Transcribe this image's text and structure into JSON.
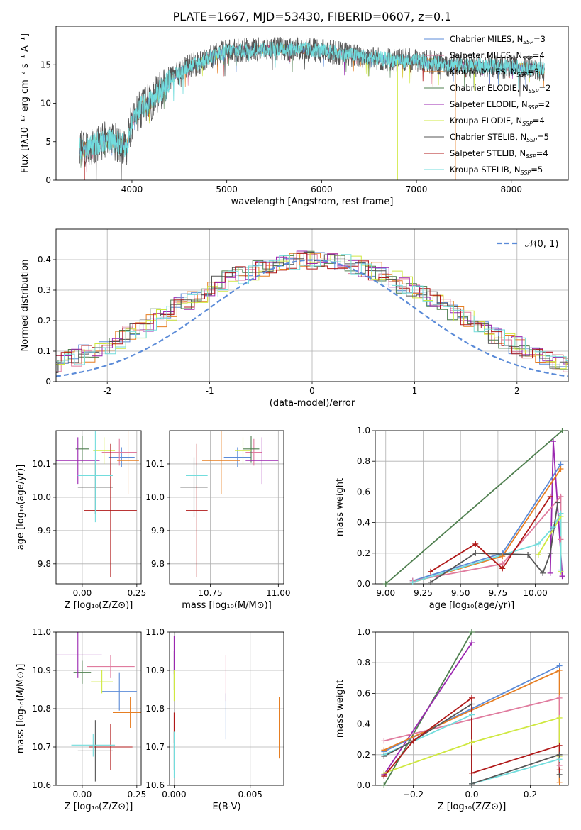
{
  "figure": {
    "title": "PLATE=1667, MJD=53430, FIBERID=0607, z=0.1"
  },
  "colors": {
    "Chabrier MILES": "#5b8bd8",
    "Salpeter MILES": "#e07b9e",
    "Kroupa MILES": "#e67e22",
    "Chabrier ELODIE": "#4f7f4f",
    "Salpeter ELODIE": "#9b27b0",
    "Kroupa ELODIE": "#cfe840",
    "Chabrier STELIB": "#555555",
    "Salpeter STELIB": "#b01818",
    "Kroupa STELIB": "#72dddd",
    "grid": "#b0b0b0",
    "gauss": "#5b8bd8"
  },
  "chart_data": [
    {
      "id": "spectrum",
      "type": "line",
      "xlabel": "wavelength [Angstrom, rest frame]",
      "ylabel": "Flux [fλ10⁻¹⁷ erg cm⁻² s⁻¹ A⁻¹]",
      "xlim": [
        3200,
        8600
      ],
      "ylim": [
        0,
        20
      ],
      "xticks": [
        4000,
        5000,
        6000,
        7000,
        8000
      ],
      "yticks": [
        0,
        5,
        10,
        15
      ],
      "grid": false,
      "legend_position": "top-right",
      "legend": [
        "Chabrier MILES, N_SSP=3",
        "Salpeter MILES, N_SSP=4",
        "Kroupa MILES, N_SSP=3",
        "Chabrier ELODIE, N_SSP=2",
        "Salpeter ELODIE, N_SSP=2",
        "Kroupa ELODIE, N_SSP=4",
        "Chabrier STELIB, N_SSP=5",
        "Salpeter STELIB, N_SSP=4",
        "Kroupa STELIB, N_SSP=5"
      ],
      "continuum": {
        "x": [
          3500,
          3600,
          3700,
          3800,
          3900,
          3950,
          4000,
          4100,
          4200,
          4300,
          4400,
          4500,
          4600,
          4700,
          4800,
          4900,
          5000,
          5200,
          5400,
          5600,
          5800,
          6000,
          6200,
          6400,
          6600,
          6800,
          7000,
          7200,
          7400,
          7600,
          7800,
          8000,
          8200,
          8350
        ],
        "y": [
          4.0,
          4.6,
          5.2,
          5.2,
          4.5,
          4.4,
          7.8,
          9.4,
          10.2,
          11.6,
          13.0,
          14.0,
          14.8,
          15.2,
          15.8,
          16.3,
          16.8,
          16.9,
          17.0,
          17.1,
          17.0,
          16.8,
          16.5,
          16.1,
          15.8,
          15.6,
          15.5,
          15.2,
          15.0,
          14.9,
          14.8,
          14.7,
          14.6,
          14.4
        ]
      },
      "spikes": [
        {
          "x": 6800,
          "series": "Kroupa ELODIE"
        },
        {
          "x": 7410,
          "series": "Kroupa MILES"
        },
        {
          "x": 3500,
          "series": "Salpeter STELIB"
        }
      ]
    },
    {
      "id": "residuals",
      "type": "step",
      "xlabel": "(data-model)/error",
      "ylabel": "Normed distribution",
      "xlim": [
        -2.5,
        2.5
      ],
      "ylim": [
        0,
        0.5
      ],
      "xticks": [
        -2,
        -1,
        0,
        1,
        2
      ],
      "yticks": [
        0.0,
        0.1,
        0.2,
        0.3,
        0.4
      ],
      "grid": true,
      "legend_position": "top-right",
      "legend": [
        "𝒩(0, 1)"
      ],
      "bin_width": 0.1,
      "base_counts": [
        0.02,
        0.024,
        0.029,
        0.035,
        0.041,
        0.049,
        0.058,
        0.068,
        0.08,
        0.092,
        0.106,
        0.121,
        0.137,
        0.154,
        0.172,
        0.19,
        0.209,
        0.228,
        0.247,
        0.266,
        0.285,
        0.302,
        0.319,
        0.335,
        0.349,
        0.362,
        0.373,
        0.382,
        0.39,
        0.395,
        0.398,
        0.399,
        0.398,
        0.395,
        0.39,
        0.382,
        0.373,
        0.362,
        0.349,
        0.335,
        0.319,
        0.302,
        0.285,
        0.266,
        0.247,
        0.228,
        0.209,
        0.19,
        0.172,
        0.154,
        0.137,
        0.121,
        0.106,
        0.092,
        0.08,
        0.068,
        0.058,
        0.049,
        0.041,
        0.035,
        0.029,
        0.024,
        0.02
      ]
    },
    {
      "id": "age-vs-Z",
      "type": "errorbar",
      "xlabel": "Z [log₁₀(Z/Z⊙)]",
      "ylabel": "age  [log₁₀(age/yr)]",
      "xlim": [
        -0.12,
        0.27
      ],
      "ylim": [
        9.74,
        10.2
      ],
      "xticks": [
        0.0,
        0.25
      ],
      "xticklabels": [
        "0.00",
        "0.25"
      ],
      "yticks": [
        9.8,
        9.9,
        10.0,
        10.1
      ],
      "yticklabels": [
        "9.8",
        "9.9",
        "10.0",
        "10.1"
      ],
      "grid": true,
      "points": [
        {
          "s": "Chabrier MILES",
          "x": 0.18,
          "y": 10.12,
          "xerr": 0.06,
          "yerr": 0.03
        },
        {
          "s": "Salpeter MILES",
          "x": 0.17,
          "y": 10.135,
          "xerr": 0.08,
          "yerr": 0.04
        },
        {
          "s": "Kroupa MILES",
          "x": 0.21,
          "y": 10.11,
          "xerr": 0.05,
          "yerr": 0.1
        },
        {
          "s": "Chabrier ELODIE",
          "x": 0.0,
          "y": 10.145,
          "xerr": 0.03,
          "yerr": 0.04
        },
        {
          "s": "Salpeter ELODIE",
          "x": -0.02,
          "y": 10.11,
          "xerr": 0.1,
          "yerr": 0.07
        },
        {
          "s": "Kroupa ELODIE",
          "x": 0.1,
          "y": 10.14,
          "xerr": 0.05,
          "yerr": 0.04
        },
        {
          "s": "Chabrier STELIB",
          "x": 0.06,
          "y": 10.03,
          "xerr": 0.08,
          "yerr": 0.08
        },
        {
          "s": "Salpeter STELIB",
          "x": 0.13,
          "y": 9.96,
          "xerr": 0.12,
          "yerr": 0.2
        },
        {
          "s": "Kroupa STELIB",
          "x": 0.06,
          "y": 10.065,
          "xerr": 0.08,
          "yerr": 0.14
        }
      ]
    },
    {
      "id": "age-vs-mass",
      "type": "errorbar",
      "xlabel": "mass [log₁₀(M/M⊙)]",
      "ylabel": "",
      "xlim": [
        10.6,
        11.02
      ],
      "ylim": [
        9.74,
        10.2
      ],
      "xticks": [
        10.75,
        11.0
      ],
      "xticklabels": [
        "10.75",
        "11.00"
      ],
      "yticks": [
        9.8,
        9.9,
        10.0,
        10.1
      ],
      "yticklabels": [
        "9.8",
        "9.9",
        "10.0",
        "10.1"
      ],
      "grid": true,
      "points": [
        {
          "s": "Chabrier MILES",
          "x": 10.85,
          "y": 10.12,
          "xerr": 0.05,
          "yerr": 0.03
        },
        {
          "s": "Salpeter MILES",
          "x": 10.91,
          "y": 10.135,
          "xerr": 0.03,
          "yerr": 0.04
        },
        {
          "s": "Kroupa MILES",
          "x": 10.79,
          "y": 10.11,
          "xerr": 0.07,
          "yerr": 0.1
        },
        {
          "s": "Chabrier ELODIE",
          "x": 10.9,
          "y": 10.145,
          "xerr": 0.03,
          "yerr": 0.04
        },
        {
          "s": "Salpeter ELODIE",
          "x": 10.94,
          "y": 10.11,
          "xerr": 0.06,
          "yerr": 0.07
        },
        {
          "s": "Kroupa ELODIE",
          "x": 10.87,
          "y": 10.14,
          "xerr": 0.03,
          "yerr": 0.04
        },
        {
          "s": "Chabrier STELIB",
          "x": 10.69,
          "y": 10.03,
          "xerr": 0.05,
          "yerr": 0.09
        },
        {
          "s": "Salpeter STELIB",
          "x": 10.7,
          "y": 9.96,
          "xerr": 0.04,
          "yerr": 0.2
        },
        {
          "s": "Kroupa STELIB",
          "x": 10.7,
          "y": 10.065,
          "xerr": 0.04,
          "yerr": 0.03
        }
      ]
    },
    {
      "id": "weight-vs-age",
      "type": "line",
      "xlabel": "age  [log₁₀(age/yr)]",
      "ylabel": "mass weight",
      "xlim": [
        8.93,
        10.22
      ],
      "ylim": [
        0,
        1.0
      ],
      "xticks": [
        9.0,
        9.25,
        9.5,
        9.75,
        10.0
      ],
      "xticklabels": [
        "9.00",
        "9.25",
        "9.50",
        "9.75",
        "10.00"
      ],
      "yticks": [
        0.0,
        0.2,
        0.4,
        0.6,
        0.8,
        1.0
      ],
      "yticklabels": [
        "0.0",
        "0.2",
        "0.4",
        "0.6",
        "0.8",
        "1.0"
      ],
      "grid": true,
      "series": [
        {
          "s": "Chabrier ELODIE",
          "x": [
            9.0,
            10.18
          ],
          "y": [
            0.0,
            1.0
          ]
        },
        {
          "s": "Salpeter ELODIE",
          "x": [
            10.1,
            10.12,
            10.18
          ],
          "y": [
            0.07,
            0.93,
            0.05
          ]
        },
        {
          "s": "Chabrier MILES",
          "x": [
            9.18,
            9.78,
            10.17
          ],
          "y": [
            0.02,
            0.2,
            0.78
          ]
        },
        {
          "s": "Kroupa MILES",
          "x": [
            9.18,
            9.78,
            10.17
          ],
          "y": [
            0.01,
            0.18,
            0.75
          ]
        },
        {
          "s": "Salpeter MILES",
          "x": [
            9.18,
            9.78,
            10.17,
            10.17
          ],
          "y": [
            0.02,
            0.13,
            0.57,
            0.29
          ]
        },
        {
          "s": "Kroupa ELODIE",
          "x": [
            10.02,
            10.17,
            10.17
          ],
          "y": [
            0.19,
            0.44,
            0.08
          ]
        },
        {
          "s": "Kroupa STELIB",
          "x": [
            9.18,
            10.02,
            10.12,
            10.17,
            10.17
          ],
          "y": [
            0.01,
            0.26,
            0.37,
            0.46,
            0.09
          ]
        },
        {
          "s": "Chabrier STELIB",
          "x": [
            9.3,
            9.6,
            9.95,
            10.05,
            10.1,
            10.15
          ],
          "y": [
            0.01,
            0.2,
            0.19,
            0.07,
            0.2,
            0.53
          ]
        },
        {
          "s": "Salpeter STELIB",
          "x": [
            9.3,
            9.6,
            9.78,
            10.1
          ],
          "y": [
            0.08,
            0.26,
            0.1,
            0.57
          ]
        }
      ]
    },
    {
      "id": "mass-vs-Z",
      "type": "errorbar",
      "xlabel": "Z [log₁₀(Z/Z⊙)]",
      "ylabel": "mass [log₁₀(M/M⊙)]",
      "xlim": [
        -0.12,
        0.27
      ],
      "ylim": [
        10.6,
        11.0
      ],
      "xticks": [
        0.0,
        0.25
      ],
      "xticklabels": [
        "0.00",
        "0.25"
      ],
      "yticks": [
        10.6,
        10.7,
        10.8,
        10.9,
        11.0
      ],
      "yticklabels": [
        "10.6",
        "10.7",
        "10.8",
        "10.9",
        "11.0"
      ],
      "grid": true,
      "points": [
        {
          "s": "Chabrier MILES",
          "x": 0.17,
          "y": 10.845,
          "xerr": 0.08,
          "yerr": 0.05
        },
        {
          "s": "Salpeter MILES",
          "x": 0.13,
          "y": 10.91,
          "xerr": 0.11,
          "yerr": 0.03
        },
        {
          "s": "Kroupa MILES",
          "x": 0.22,
          "y": 10.79,
          "xerr": 0.08,
          "yerr": 0.04
        },
        {
          "s": "Chabrier ELODIE",
          "x": 0.0,
          "y": 10.895,
          "xerr": 0.04,
          "yerr": 0.03
        },
        {
          "s": "Salpeter ELODIE",
          "x": -0.02,
          "y": 10.94,
          "xerr": 0.11,
          "yerr": 0.06
        },
        {
          "s": "Kroupa ELODIE",
          "x": 0.09,
          "y": 10.87,
          "xerr": 0.05,
          "yerr": 0.03
        },
        {
          "s": "Chabrier STELIB",
          "x": 0.06,
          "y": 10.69,
          "xerr": 0.08,
          "yerr": 0.08
        },
        {
          "s": "Salpeter STELIB",
          "x": 0.13,
          "y": 10.7,
          "xerr": 0.1,
          "yerr": 0.06
        },
        {
          "s": "Kroupa STELIB",
          "x": 0.05,
          "y": 10.705,
          "xerr": 0.1,
          "yerr": 0.03
        }
      ]
    },
    {
      "id": "mass-vs-EBV",
      "type": "errorbar",
      "xlabel": "E(B-V)",
      "ylabel": "",
      "xlim": [
        -0.0003,
        0.0072
      ],
      "ylim": [
        10.6,
        11.0
      ],
      "xticks": [
        0.0,
        0.005
      ],
      "xticklabels": [
        "0.000",
        "0.005"
      ],
      "yticks": [
        10.6,
        10.7,
        10.8,
        10.9,
        11.0
      ],
      "yticklabels": [
        "10.6",
        "10.7",
        "10.8",
        "10.9",
        "11.0"
      ],
      "grid": true,
      "points": [
        {
          "s": "Chabrier MILES",
          "x": 0.0034,
          "y": 10.78,
          "xerr": 0,
          "yerr": 0.06
        },
        {
          "s": "Salpeter MILES",
          "x": 0.0034,
          "y": 10.88,
          "xerr": 0,
          "yerr": 0.06
        },
        {
          "s": "Kroupa MILES",
          "x": 0.0069,
          "y": 10.75,
          "xerr": 0,
          "yerr": 0.08
        },
        {
          "s": "Chabrier ELODIE",
          "x": 0.0,
          "y": 10.9,
          "xerr": 0,
          "yerr": 0.05
        },
        {
          "s": "Salpeter ELODIE",
          "x": 0.0,
          "y": 10.94,
          "xerr": 0,
          "yerr": 0.05
        },
        {
          "s": "Kroupa ELODIE",
          "x": 0.0,
          "y": 10.86,
          "xerr": 0,
          "yerr": 0.04
        },
        {
          "s": "Chabrier STELIB",
          "x": 0.0,
          "y": 10.69,
          "xerr": 0,
          "yerr": 0.05
        },
        {
          "s": "Salpeter STELIB",
          "x": 0.0,
          "y": 10.75,
          "xerr": 0,
          "yerr": 0.04
        },
        {
          "s": "Kroupa STELIB",
          "x": 0.0,
          "y": 10.68,
          "xerr": 0,
          "yerr": 0.06
        }
      ]
    },
    {
      "id": "weight-vs-Z",
      "type": "line",
      "xlabel": "Z [log₁₀(Z/Z⊙)]",
      "ylabel": "mass weight",
      "xlim": [
        -0.33,
        0.33
      ],
      "ylim": [
        0,
        1.0
      ],
      "xticks": [
        -0.2,
        0.0,
        0.2
      ],
      "xticklabels": [
        "−0.2",
        "0.0",
        "0.2"
      ],
      "yticks": [
        0.0,
        0.2,
        0.4,
        0.6,
        0.8,
        1.0
      ],
      "yticklabels": [
        "0.0",
        "0.2",
        "0.4",
        "0.6",
        "0.8",
        "1.0"
      ],
      "grid": true,
      "series": [
        {
          "s": "Chabrier ELODIE",
          "x": [
            -0.3,
            0.0
          ],
          "y": [
            0.0,
            1.0
          ]
        },
        {
          "s": "Salpeter ELODIE",
          "x": [
            -0.3,
            0.0
          ],
          "y": [
            0.07,
            0.93
          ]
        },
        {
          "s": "Chabrier MILES",
          "x": [
            -0.3,
            0.3
          ],
          "y": [
            0.22,
            0.78
          ]
        },
        {
          "s": "Kroupa MILES",
          "x": [
            -0.3,
            0.3,
            0.3
          ],
          "y": [
            0.23,
            0.75,
            0.02
          ]
        },
        {
          "s": "Salpeter MILES",
          "x": [
            -0.3,
            0.3,
            0.3
          ],
          "y": [
            0.29,
            0.57,
            0.13
          ]
        },
        {
          "s": "Kroupa ELODIE",
          "x": [
            -0.3,
            0.0,
            0.3,
            0.3
          ],
          "y": [
            0.08,
            0.28,
            0.44,
            0.19
          ]
        },
        {
          "s": "Kroupa STELIB",
          "x": [
            -0.3,
            0.0,
            0.0,
            0.3
          ],
          "y": [
            0.2,
            0.46,
            0.01,
            0.17
          ]
        },
        {
          "s": "Chabrier STELIB",
          "x": [
            -0.3,
            -0.2,
            0.0,
            0.0,
            0.3,
            0.3
          ],
          "y": [
            0.19,
            0.29,
            0.53,
            0.01,
            0.2,
            0.07
          ]
        },
        {
          "s": "Salpeter STELIB",
          "x": [
            -0.3,
            -0.2,
            0.0,
            0.0,
            0.3,
            0.3
          ],
          "y": [
            0.06,
            0.29,
            0.57,
            0.08,
            0.26,
            0.1
          ]
        }
      ]
    }
  ]
}
